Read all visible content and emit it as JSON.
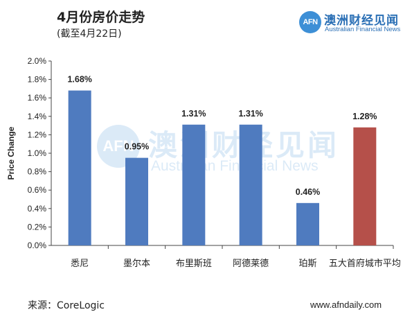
{
  "header": {
    "title": "4月份房价走势",
    "subtitle": "(截至4月22日)"
  },
  "logo": {
    "mark": "AFN",
    "name_cn": "澳洲财经见闻",
    "name_en": "Australian Financial News"
  },
  "watermark": {
    "mark": "AFN",
    "name_cn": "澳洲财经见闻",
    "name_en": "Australian Financial News"
  },
  "footer": {
    "source": "来源：CoreLogic",
    "website": "www.afndaily.com"
  },
  "chart_data": {
    "type": "bar",
    "ylabel": "Price Change",
    "xlabel": "",
    "ylim": [
      0,
      2.0
    ],
    "yticks": [
      "0.0%",
      "0.2%",
      "0.4%",
      "0.6%",
      "0.8%",
      "1.0%",
      "1.2%",
      "1.4%",
      "1.6%",
      "1.8%",
      "2.0%"
    ],
    "grid": false,
    "categories": [
      "悉尼",
      "墨尔本",
      "布里斯班",
      "阿德莱德",
      "珀斯",
      "五大首府城市平均"
    ],
    "values": [
      1.68,
      0.95,
      1.31,
      1.31,
      0.46,
      1.28
    ],
    "data_labels": [
      "1.68%",
      "0.95%",
      "1.31%",
      "1.31%",
      "0.46%",
      "1.28%"
    ],
    "colors": [
      "#4f7bbf",
      "#4f7bbf",
      "#4f7bbf",
      "#4f7bbf",
      "#4f7bbf",
      "#b5504a"
    ]
  }
}
